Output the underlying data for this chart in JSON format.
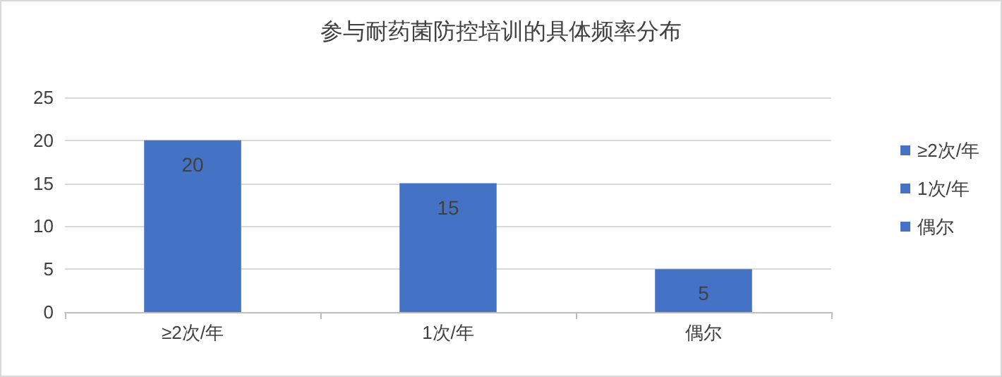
{
  "chart_data": {
    "type": "bar",
    "title": "参与耐药菌防控培训的具体频率分布",
    "categories": [
      "≥2次/年",
      "1次/年",
      "偶尔"
    ],
    "series": [
      {
        "name": "≥2次/年",
        "color": "#4472c4",
        "values": [
          20,
          null,
          null
        ]
      },
      {
        "name": "1次/年",
        "color": "#4472c4",
        "values": [
          null,
          15,
          null
        ]
      },
      {
        "name": "偶尔",
        "color": "#4472c4",
        "values": [
          null,
          null,
          5
        ]
      }
    ],
    "stacked": true,
    "ylim": [
      0,
      25
    ],
    "yticks": [
      0,
      5,
      10,
      15,
      20,
      25
    ],
    "grid": "y",
    "legend": "right",
    "data_labels": true
  }
}
